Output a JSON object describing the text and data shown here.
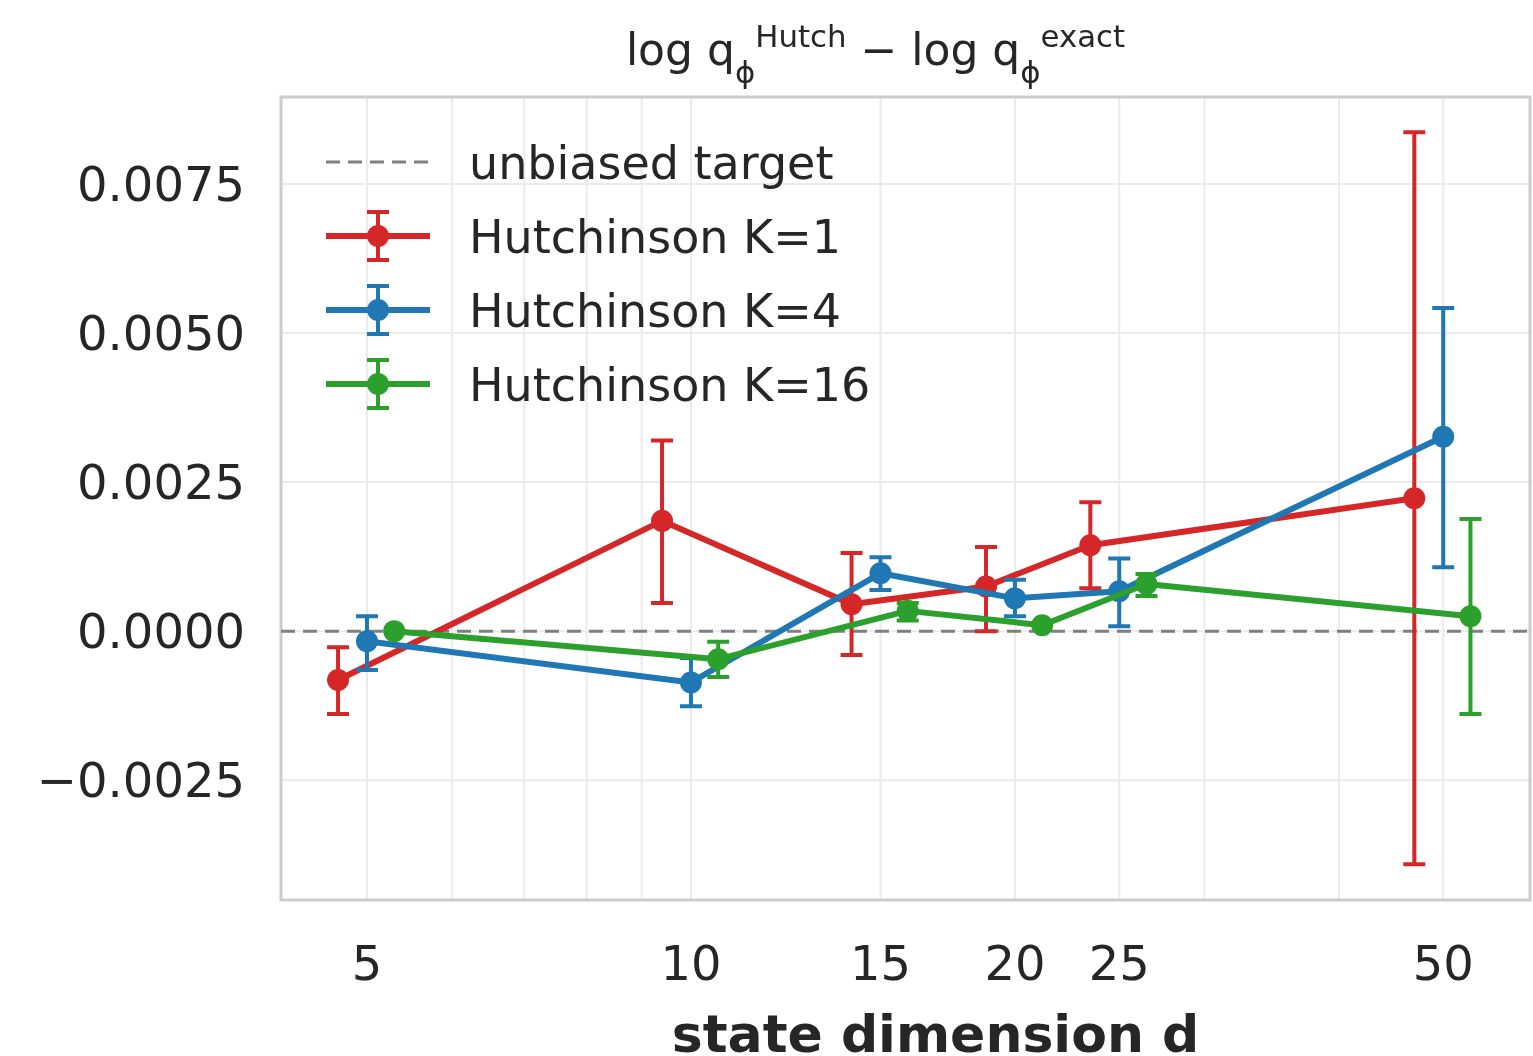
{
  "chart_data": {
    "type": "line",
    "title": "log q$_{ϕ}$$^{Hutch}$ − log q$_{ϕ}$$^{exact}$",
    "xlabel": "state dimension d",
    "log": "x",
    "xlim": [
      4.16,
      60.2
    ],
    "xticks": [
      5,
      {
        "value": 6,
        "label": null
      },
      {
        "value": 7,
        "label": null
      },
      {
        "value": 8,
        "label": null
      },
      {
        "value": 9,
        "label": null
      },
      10,
      15,
      20,
      25,
      {
        "value": 30,
        "label": null
      },
      {
        "value": 40,
        "label": null
      },
      50
    ],
    "ylim": [
      -0.00451,
      0.00896
    ],
    "yticks": [
      {
        "value": -0.0025,
        "label": "−0.0025"
      },
      {
        "value": 0,
        "label": "0.0000"
      },
      {
        "value": 0.0025,
        "label": "0.0025"
      },
      {
        "value": 0.005,
        "label": "0.0050"
      },
      {
        "value": 0.0075,
        "label": "0.0075"
      }
    ],
    "grid": true,
    "legend": "top left",
    "marker": "circle",
    "line_style": "solid",
    "ref_lines": [
      {
        "axis": "y",
        "value": 0,
        "label": "unbiased target",
        "color": "#808080",
        "line_style": "dashed"
      }
    ],
    "series": [
      {
        "name": "Hutchinson K=1",
        "color": "#d62728",
        "x": [
          4.7,
          9.4,
          14.1,
          18.8,
          23.5,
          47
        ],
        "values": [
          -0.00082,
          0.00185,
          0.00045,
          0.00075,
          0.00144,
          0.00223
        ],
        "errors": [
          [
            -0.00139,
            -0.00027
          ],
          [
            0.00047,
            0.0032
          ],
          [
            -0.0004,
            0.00131
          ],
          [
            0,
            0.00141
          ],
          [
            0.00072,
            0.00216
          ],
          [
            -0.00391,
            0.00837
          ]
        ]
      },
      {
        "name": "Hutchinson K=4",
        "color": "#1f77b4",
        "x": [
          5,
          10,
          15,
          20,
          25,
          50
        ],
        "values": [
          -0.00017,
          -0.00086,
          0.00097,
          0.00055,
          0.00067,
          0.00326
        ],
        "errors": [
          [
            -0.00065,
            0.00025
          ],
          [
            -0.00126,
            -0.00045
          ],
          [
            0.00069,
            0.00124
          ],
          [
            0.00025,
            0.00086
          ],
          [
            8e-05,
            0.00122
          ],
          [
            0.00107,
            0.00542
          ]
        ]
      },
      {
        "name": "Hutchinson K=16",
        "color": "#2ca02c",
        "x": [
          5.3,
          10.6,
          15.9,
          21.2,
          26.5,
          53
        ],
        "values": [
          0,
          -0.00047,
          0.00034,
          0.0001,
          0.00079,
          0.00025
        ],
        "errors": [
          null,
          [
            -0.00077,
            -0.00018
          ],
          [
            0.00018,
            0.00047
          ],
          null,
          [
            0.00059,
            0.00096
          ],
          [
            -0.00139,
            0.00188
          ]
        ]
      }
    ]
  }
}
